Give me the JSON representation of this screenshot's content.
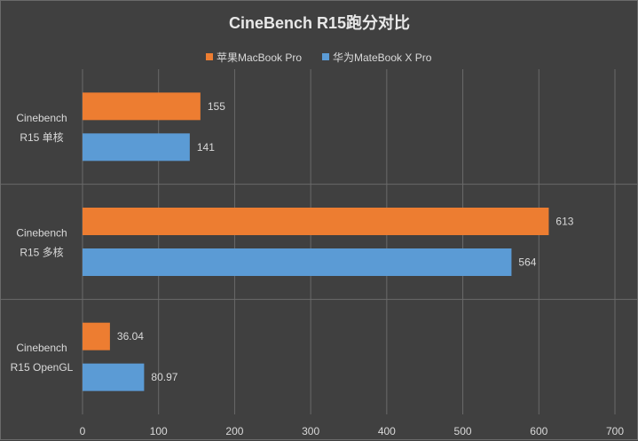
{
  "chart_data": {
    "type": "bar",
    "orientation": "horizontal",
    "title": "CineBench R15跑分对比",
    "categories": [
      [
        "Cinebench",
        "R15 单核"
      ],
      [
        "Cinebench",
        "R15 多核"
      ],
      [
        "Cinebench",
        "R15 OpenGL"
      ]
    ],
    "series": [
      {
        "name": "苹果MacBook Pro",
        "color": "#ed7d31",
        "values": [
          155,
          613,
          36.04
        ],
        "labels": [
          "155",
          "613",
          "36.04"
        ]
      },
      {
        "name": "华为MateBook X Pro",
        "color": "#5b9bd5",
        "values": [
          141,
          564,
          80.97
        ],
        "labels": [
          "141",
          "564",
          "80.97"
        ]
      }
    ],
    "xlim": [
      0,
      700
    ],
    "xticks": [
      0,
      100,
      200,
      300,
      400,
      500,
      600,
      700
    ],
    "grid": true,
    "legend": "top",
    "colors": {
      "background": "#404040",
      "gridline": "#6a6a6a",
      "text": "#d9d9d9"
    }
  }
}
